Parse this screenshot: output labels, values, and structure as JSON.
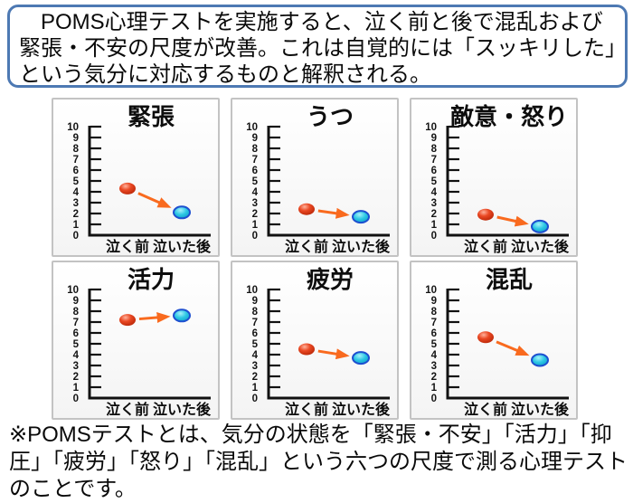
{
  "intro_box": {
    "text": "　POMS心理テストを実施すると、泣く前と後で混乱および緊張・不安の尺度が改善。これは自覚的には「スッキリした」という気分に対応するものと解釈される。"
  },
  "footnote": {
    "text": "※POMSテストとは、気分の状態を「緊張・不安」「活力」「抑圧」「疲労」「怒り」「混乱」という六つの尺度で測る心理テストのことです。"
  },
  "colors": {
    "intro_border": "#4d79b3",
    "axis": "#111111",
    "arrow": "#f96a1e",
    "before_dot": "#e23a18",
    "after_dot": "#18b8dc",
    "after_ring": "#1d4fd0",
    "panel_border": "#c3c3c3"
  },
  "chart_data": [
    {
      "key": "tension",
      "type": "scatter",
      "title": "緊張",
      "categories": [
        "泣く前",
        "泣いた後"
      ],
      "values": [
        4.3,
        2.1
      ],
      "ylim": [
        0,
        10
      ],
      "ytick_step": 1,
      "grid": false,
      "legend": false,
      "arrow": "down"
    },
    {
      "key": "depression",
      "type": "scatter",
      "title": "うつ",
      "categories": [
        "泣く前",
        "泣いた後"
      ],
      "values": [
        2.4,
        1.7
      ],
      "ylim": [
        0,
        10
      ],
      "ytick_step": 1,
      "grid": false,
      "legend": false,
      "arrow": "down"
    },
    {
      "key": "anger",
      "type": "scatter",
      "title": "敵意・怒り",
      "categories": [
        "泣く前",
        "泣いた後"
      ],
      "values": [
        1.9,
        0.8
      ],
      "ylim": [
        0,
        10
      ],
      "ytick_step": 1,
      "grid": false,
      "legend": false,
      "arrow": "down"
    },
    {
      "key": "vigor",
      "type": "scatter",
      "title": "活力",
      "categories": [
        "泣く前",
        "泣いた後"
      ],
      "values": [
        7.2,
        7.6
      ],
      "ylim": [
        0,
        10
      ],
      "ytick_step": 1,
      "grid": false,
      "legend": false,
      "arrow": "up"
    },
    {
      "key": "fatigue",
      "type": "scatter",
      "title": "疲労",
      "categories": [
        "泣く前",
        "泣いた後"
      ],
      "values": [
        4.5,
        3.7
      ],
      "ylim": [
        0,
        10
      ],
      "ytick_step": 1,
      "grid": false,
      "legend": false,
      "arrow": "down"
    },
    {
      "key": "confusion",
      "type": "scatter",
      "title": "混乱",
      "categories": [
        "泣く前",
        "泣いた後"
      ],
      "values": [
        5.6,
        3.5
      ],
      "ylim": [
        0,
        10
      ],
      "ytick_step": 1,
      "grid": false,
      "legend": false,
      "arrow": "down"
    }
  ]
}
